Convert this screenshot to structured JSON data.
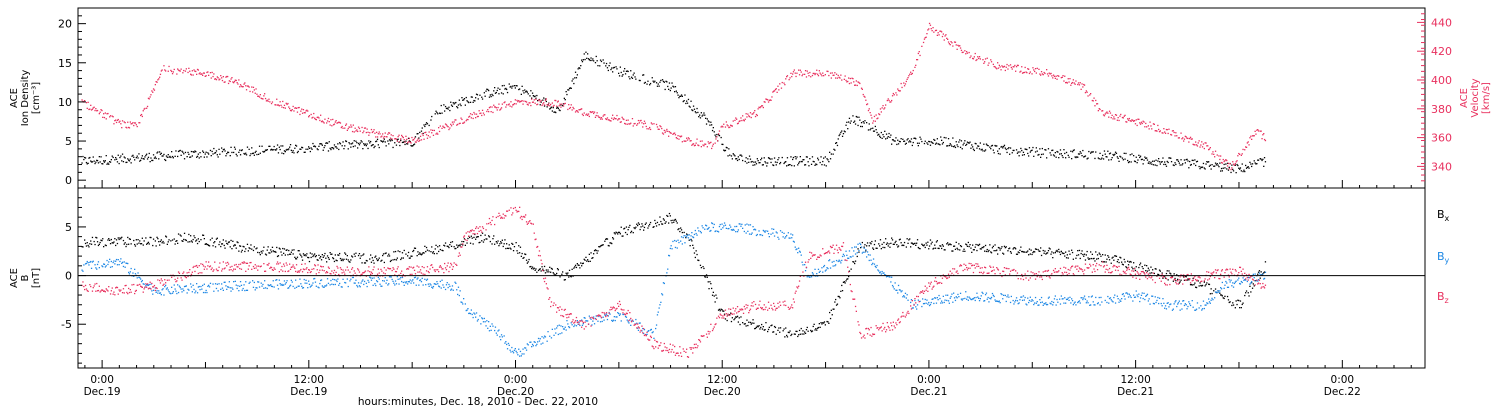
{
  "xaxis": {
    "title": "hours:minutes, Dec. 18, 2010 - Dec. 22, 2010",
    "ticks": [
      {
        "t": 0,
        "time": "0:00",
        "date": "Dec.19"
      },
      {
        "t": 12,
        "time": "12:00",
        "date": "Dec.19"
      },
      {
        "t": 24,
        "time": "0:00",
        "date": "Dec.20"
      },
      {
        "t": 36,
        "time": "12:00",
        "date": "Dec.20"
      },
      {
        "t": 48,
        "time": "0:00",
        "date": "Dec.21"
      },
      {
        "t": 60,
        "time": "12:00",
        "date": "Dec.21"
      },
      {
        "t": 72,
        "time": "0:00",
        "date": "Dec.22"
      }
    ]
  },
  "colors": {
    "black": "#000000",
    "red": "#e8305e",
    "blue": "#1e88e5"
  },
  "chart_data": [
    {
      "type": "scatter",
      "panel": "top",
      "xlim": [
        -1.4,
        76.8
      ],
      "x_units": "hours from Dec.19 0:00",
      "left_axis": {
        "label_lines": [
          "ACE",
          "Ion Density",
          "[cm⁻³]"
        ],
        "ylim": [
          -1,
          22
        ],
        "ticks": [
          0,
          5,
          10,
          15,
          20
        ],
        "color": "#000000"
      },
      "right_axis": {
        "label_lines": [
          "ACE",
          "Velocity",
          "[km/s]"
        ],
        "ylim": [
          325,
          450
        ],
        "ticks": [
          340,
          360,
          380,
          400,
          420,
          440
        ],
        "color": "#e8305e"
      },
      "series": [
        {
          "color": "#000000",
          "axis": "left",
          "x": [
            -1.2,
            2.5,
            6,
            10,
            14,
            18,
            19.5,
            22,
            24,
            26.5,
            28,
            30,
            33,
            35,
            36.5,
            38,
            42,
            43.5,
            44.5,
            46,
            49,
            52,
            55,
            58,
            61,
            64,
            66,
            67.5
          ],
          "y": [
            2.5,
            3,
            3.5,
            4,
            4.5,
            5,
            9,
            11,
            12,
            9,
            16,
            14,
            12,
            8,
            3,
            2.5,
            2.5,
            8,
            7,
            5,
            5,
            4,
            3.5,
            3.3,
            2.5,
            2,
            1.5,
            2.5
          ]
        },
        {
          "color": "#e8305e",
          "axis": "right",
          "x": [
            -1.2,
            1,
            2,
            3.5,
            6,
            8,
            10,
            14,
            18,
            20,
            22,
            24,
            26,
            28,
            32,
            34,
            35.5,
            36,
            38,
            40,
            42,
            44,
            44.7,
            47,
            48,
            50,
            52,
            55,
            57,
            58,
            61,
            64,
            65.5,
            67,
            67.5
          ],
          "y": [
            385,
            370,
            368,
            408,
            405,
            398,
            385,
            368,
            358,
            368,
            378,
            385,
            385,
            378,
            368,
            358,
            355,
            368,
            378,
            405,
            405,
            398,
            372,
            405,
            438,
            420,
            410,
            405,
            395,
            378,
            368,
            355,
            340,
            365,
            360
          ]
        }
      ]
    },
    {
      "type": "scatter",
      "panel": "bottom",
      "xlim": [
        -1.4,
        76.8
      ],
      "x_units": "hours from Dec.19 0:00",
      "left_axis": {
        "label_lines": [
          "ACE",
          "B",
          "[nT]"
        ],
        "ylim": [
          -9.5,
          9
        ],
        "ticks": [
          -5,
          0,
          5
        ],
        "color": "#000000"
      },
      "zero_line": true,
      "legend": [
        {
          "text": "B",
          "sub": "x",
          "color": "#000000"
        },
        {
          "text": "B",
          "sub": "y",
          "color": "#1e88e5"
        },
        {
          "text": "B",
          "sub": "z",
          "color": "#e8305e"
        }
      ],
      "series": [
        {
          "name": "Bx",
          "color": "#000000",
          "x": [
            -1.2,
            3,
            5,
            8,
            12,
            16,
            20,
            22,
            24,
            25,
            27,
            30,
            33,
            34,
            36,
            37,
            40,
            42,
            44,
            46,
            50,
            54,
            58,
            62,
            64,
            66,
            67.5
          ],
          "y": [
            3.5,
            3.5,
            4,
            3,
            2,
            1.8,
            3,
            4,
            3,
            1,
            0,
            4.5,
            6,
            4,
            -4,
            -4.5,
            -6,
            -5,
            3,
            3.5,
            3,
            2.5,
            2,
            0,
            -1,
            -3,
            1
          ]
        },
        {
          "name": "By",
          "color": "#1e88e5",
          "x": [
            -1.2,
            1,
            3,
            8,
            12,
            18,
            20.5,
            21,
            23,
            24,
            25,
            27,
            30,
            32,
            33,
            35,
            36,
            37,
            40,
            41,
            44,
            45,
            47,
            50,
            54,
            58,
            60,
            62,
            64,
            65,
            67.5
          ],
          "y": [
            1,
            1.5,
            -1.5,
            -1,
            -0.7,
            -0.5,
            -1,
            -3,
            -6,
            -8,
            -7,
            -5,
            -4,
            -6,
            3,
            5,
            5,
            5,
            4,
            0,
            3,
            1,
            -3,
            -2,
            -2.5,
            -2.5,
            -2,
            -3,
            -3,
            -1,
            0
          ]
        },
        {
          "name": "Bz",
          "color": "#e8305e",
          "x": [
            -1.2,
            1,
            3,
            6,
            10,
            14,
            18,
            20.5,
            21,
            23,
            24,
            25,
            26,
            28,
            30,
            32,
            34,
            36,
            38,
            40,
            41,
            43,
            44,
            46,
            48,
            50,
            54,
            58,
            62,
            66,
            67.5
          ],
          "y": [
            -1,
            -1.5,
            -1,
            1,
            1,
            0.5,
            0.5,
            1,
            4,
            6,
            7,
            5,
            -3,
            -5,
            -3,
            -7,
            -8,
            -4,
            -3,
            -3,
            2,
            3,
            -6,
            -5,
            -1,
            1,
            0,
            1,
            -0.5,
            0.5,
            -1
          ]
        }
      ]
    }
  ]
}
